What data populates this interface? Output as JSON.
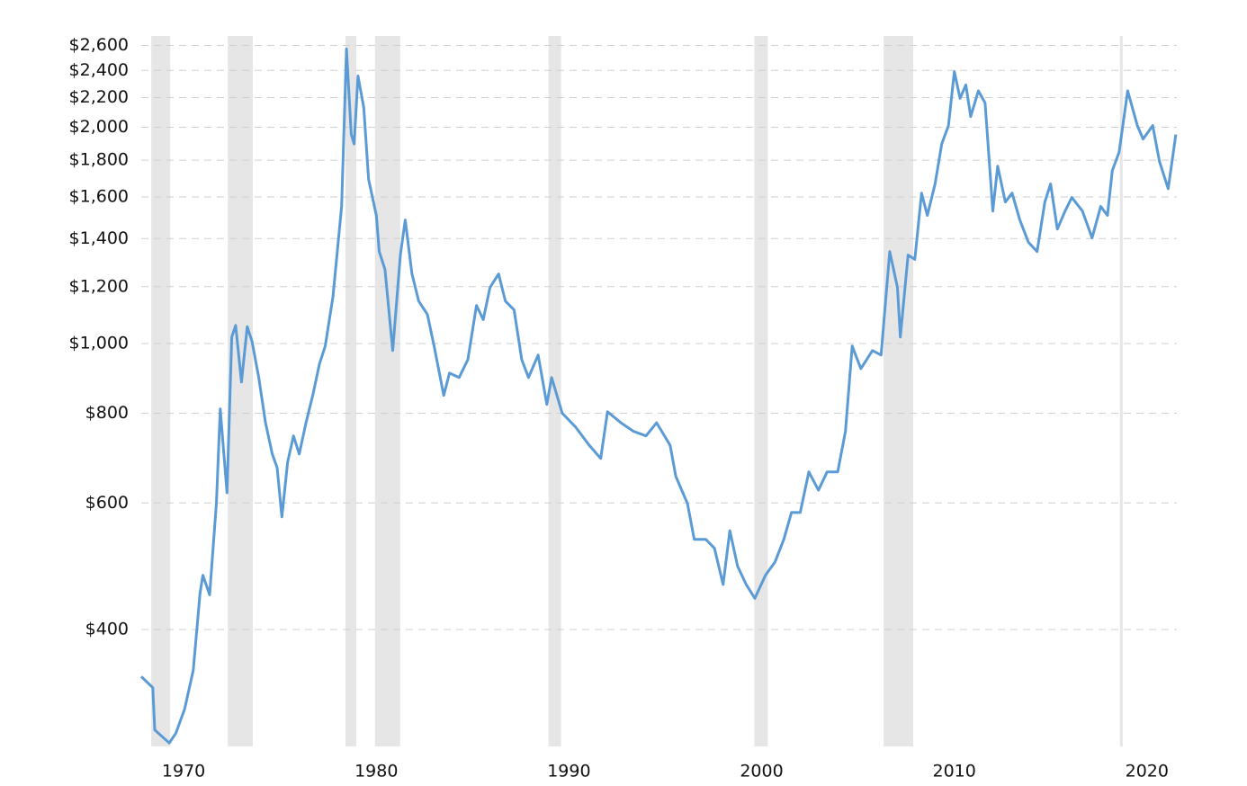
{
  "chart_data": {
    "type": "line",
    "log_scale": true,
    "grid": true,
    "color": "#5b9bd5",
    "shade_color": "#e6e6e6",
    "xlim": [
      1967.8,
      2021.55
    ],
    "xticks": [
      1970,
      1980,
      1990,
      2000,
      2010,
      2020
    ],
    "ylim": [
      275,
      2680
    ],
    "yticks": [
      {
        "value": 400,
        "label": "$400"
      },
      {
        "value": 600,
        "label": "$600"
      },
      {
        "value": 800,
        "label": "$800"
      },
      {
        "value": 1000,
        "label": "$1,000"
      },
      {
        "value": 1200,
        "label": "$1,200"
      },
      {
        "value": 1400,
        "label": "$1,400"
      },
      {
        "value": 1600,
        "label": "$1,600"
      },
      {
        "value": 1800,
        "label": "$1,800"
      },
      {
        "value": 2000,
        "label": "$2,000"
      },
      {
        "value": 2200,
        "label": "$2,200"
      },
      {
        "value": 2400,
        "label": "$2,400"
      },
      {
        "value": 2600,
        "label": "$2,600"
      }
    ],
    "shaded_periods": [
      [
        1968.32,
        1969.3
      ],
      [
        1972.29,
        1973.59
      ],
      [
        1978.4,
        1978.96
      ],
      [
        1979.93,
        1981.24
      ],
      [
        1988.94,
        1989.59
      ],
      [
        1999.62,
        2000.32
      ],
      [
        2006.33,
        2007.87
      ],
      [
        2018.6,
        2018.74
      ]
    ],
    "x": [
      1967.8,
      1968.4,
      1968.5,
      1969.25,
      1969.6,
      1970.05,
      1970.5,
      1970.85,
      1971.0,
      1971.35,
      1971.7,
      1971.9,
      1972.25,
      1972.5,
      1972.7,
      1973.0,
      1973.3,
      1973.55,
      1973.9,
      1974.25,
      1974.6,
      1974.85,
      1975.1,
      1975.4,
      1975.7,
      1976.0,
      1976.35,
      1976.7,
      1977.05,
      1977.35,
      1977.75,
      1978.2,
      1978.45,
      1978.7,
      1978.85,
      1979.05,
      1979.35,
      1979.6,
      1980.0,
      1980.15,
      1980.45,
      1980.85,
      1981.25,
      1981.5,
      1981.85,
      1982.2,
      1982.65,
      1983.0,
      1983.5,
      1983.8,
      1984.3,
      1984.75,
      1985.2,
      1985.55,
      1985.9,
      1986.35,
      1986.7,
      1987.15,
      1987.55,
      1987.9,
      1988.4,
      1988.85,
      1989.1,
      1989.65,
      1990.35,
      1991.05,
      1991.65,
      1992.0,
      1992.7,
      1993.35,
      1994.0,
      1994.55,
      1995.25,
      1995.55,
      1996.15,
      1996.5,
      1997.1,
      1997.55,
      1998.0,
      1998.35,
      1998.75,
      1999.2,
      1999.65,
      2000.2,
      2000.7,
      2001.15,
      2001.55,
      2002.0,
      2002.45,
      2002.95,
      2003.4,
      2003.95,
      2004.35,
      2004.7,
      2005.15,
      2005.75,
      2006.2,
      2006.65,
      2007.05,
      2007.2,
      2007.6,
      2007.95,
      2008.3,
      2008.6,
      2009.0,
      2009.35,
      2009.7,
      2010.0,
      2010.3,
      2010.6,
      2010.85,
      2011.25,
      2011.6,
      2012.0,
      2012.25,
      2012.65,
      2013.0,
      2013.4,
      2013.85,
      2014.3,
      2014.7,
      2015.0,
      2015.35,
      2015.75,
      2016.1,
      2016.65,
      2017.15,
      2017.6,
      2017.95,
      2018.2,
      2018.55,
      2019.0,
      2019.5,
      2019.8,
      2020.3,
      2020.65,
      2021.1,
      2021.5
    ],
    "values": [
      344,
      332,
      290,
      278,
      287,
      310,
      351,
      449,
      476,
      447,
      599,
      811,
      620,
      1021,
      1060,
      884,
      1056,
      1007,
      897,
      776,
      702,
      672,
      574,
      684,
      744,
      702,
      776,
      847,
      937,
      992,
      1163,
      1552,
      2571,
      1954,
      1896,
      2358,
      2131,
      1692,
      1508,
      1343,
      1268,
      978,
      1328,
      1486,
      1250,
      1146,
      1098,
      992,
      847,
      910,
      897,
      950,
      1130,
      1080,
      1197,
      1250,
      1146,
      1114,
      950,
      897,
      964,
      823,
      897,
      800,
      765,
      722,
      692,
      804,
      776,
      755,
      744,
      776,
      722,
      653,
      599,
      534,
      534,
      519,
      462,
      549,
      490,
      462,
      442,
      476,
      497,
      534,
      582,
      582,
      663,
      625,
      663,
      663,
      755,
      992,
      923,
      978,
      964,
      1343,
      1197,
      1021,
      1328,
      1310,
      1620,
      1508,
      1668,
      1896,
      2011,
      2391,
      2194,
      2291,
      2070,
      2248,
      2162,
      1529,
      1766,
      1574,
      1620,
      1486,
      1383,
      1343,
      1574,
      1668,
      1443,
      1529,
      1597,
      1529,
      1403,
      1552,
      1508,
      1741,
      1846,
      2248,
      2011,
      1926,
      2011,
      1793,
      1643,
      1954
    ]
  }
}
